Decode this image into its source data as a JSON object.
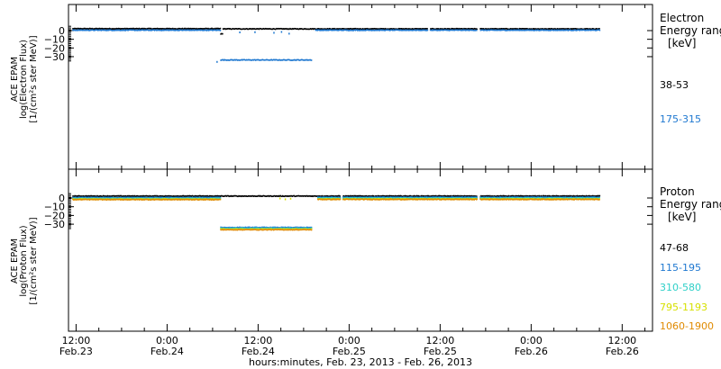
{
  "x_axis": {
    "tick_labels": [
      {
        "time": "12:00",
        "date": "Feb.23",
        "hours": 12
      },
      {
        "time": "0:00",
        "date": "Feb.24",
        "hours": 24
      },
      {
        "time": "12:00",
        "date": "Feb.24",
        "hours": 36
      },
      {
        "time": "0:00",
        "date": "Feb.25",
        "hours": 48
      },
      {
        "time": "12:00",
        "date": "Feb.25",
        "hours": 60
      },
      {
        "time": "0:00",
        "date": "Feb.26",
        "hours": 72
      },
      {
        "time": "12:00",
        "date": "Feb.26",
        "hours": 84
      }
    ],
    "title": "hours:minutes, Feb. 23, 2013 - Feb. 26, 2013"
  },
  "chart_data": [
    {
      "type": "scatter",
      "panel": "electron",
      "ylabel_lines": [
        "ACE EPAM",
        "log(Electron Flux)",
        "[1/(cm²s ster MeV)]"
      ],
      "ylim": [
        -40,
        5
      ],
      "yticks": [
        0,
        -10,
        -20,
        -30
      ],
      "xlim_hours": [
        11,
        88
      ],
      "legend_title": [
        "Electron",
        "Energy range",
        "[keV]"
      ],
      "gaps_hours": [
        [
          58.3,
          58.6
        ],
        [
          64.8,
          65.2
        ]
      ],
      "series": [
        {
          "name": "38-53",
          "color": "#000000",
          "segments": [
            {
              "start": 11.5,
              "end": 31.0,
              "level": 3.0
            },
            {
              "start": 31.0,
              "end": 31.3,
              "level": -3.0
            },
            {
              "start": 31.3,
              "end": 81.0,
              "level": 2.8
            }
          ]
        },
        {
          "name": "175-315",
          "color": "#1f78d0",
          "segments": [
            {
              "start": 11.5,
              "end": 31.0,
              "level": 1.3
            },
            {
              "start": 31.0,
              "end": 43.0,
              "level": -33.0
            },
            {
              "start": 43.5,
              "end": 81.0,
              "level": 1.3
            }
          ],
          "scatter_points": [
            {
              "x": 33.5,
              "y": -1.0
            },
            {
              "x": 35.5,
              "y": -0.8
            },
            {
              "x": 38.0,
              "y": -1.5
            },
            {
              "x": 39.0,
              "y": -0.5
            },
            {
              "x": 40.0,
              "y": -2.5
            },
            {
              "x": 30.5,
              "y": -35.0
            }
          ]
        }
      ]
    },
    {
      "type": "scatter",
      "panel": "proton",
      "ylabel_lines": [
        "ACE EPAM",
        "log(Proton Flux)",
        "[1/(cm²s ster MeV)]"
      ],
      "ylim": [
        -38,
        5
      ],
      "yticks": [
        0,
        -10,
        -20,
        -30
      ],
      "xlim_hours": [
        11,
        88
      ],
      "legend_title": [
        "Proton",
        "Energy range",
        "[keV]"
      ],
      "gaps_hours": [
        [
          46.8,
          47.1
        ],
        [
          64.8,
          65.2
        ]
      ],
      "series": [
        {
          "name": "47-68",
          "color": "#000000",
          "segments": [
            {
              "start": 11.5,
              "end": 31.0,
              "level": 3.0
            },
            {
              "start": 31.0,
              "end": 81.0,
              "level": 3.0
            }
          ]
        },
        {
          "name": "115-195",
          "color": "#1f78d0",
          "segments": [
            {
              "start": 11.5,
              "end": 31.0,
              "level": 1.3
            },
            {
              "start": 31.0,
              "end": 43.0,
              "level": -33.0
            },
            {
              "start": 43.8,
              "end": 81.0,
              "level": 1.6
            }
          ]
        },
        {
          "name": "310-580",
          "color": "#2fd0c8",
          "segments": [
            {
              "start": 11.5,
              "end": 31.0,
              "level": 0.3
            },
            {
              "start": 31.0,
              "end": 43.0,
              "level": -34.0
            },
            {
              "start": 43.8,
              "end": 81.0,
              "level": 0.7
            }
          ]
        },
        {
          "name": "795-1193",
          "color": "#d6e000",
          "segments": [
            {
              "start": 11.5,
              "end": 31.0,
              "level": -0.5
            },
            {
              "start": 31.0,
              "end": 43.0,
              "level": -34.8
            },
            {
              "start": 43.8,
              "end": 81.0,
              "level": -0.3
            }
          ],
          "scatter_points": [
            {
              "x": 38.8,
              "y": 0.5
            },
            {
              "x": 39.5,
              "y": -0.5
            },
            {
              "x": 40.2,
              "y": 0.2
            }
          ]
        },
        {
          "name": "1060-1900",
          "color": "#e08a00",
          "segments": [
            {
              "start": 11.5,
              "end": 31.0,
              "level": -1.0
            },
            {
              "start": 31.0,
              "end": 43.0,
              "level": -35.5
            },
            {
              "start": 43.8,
              "end": 81.0,
              "level": -0.8
            }
          ]
        }
      ]
    }
  ]
}
